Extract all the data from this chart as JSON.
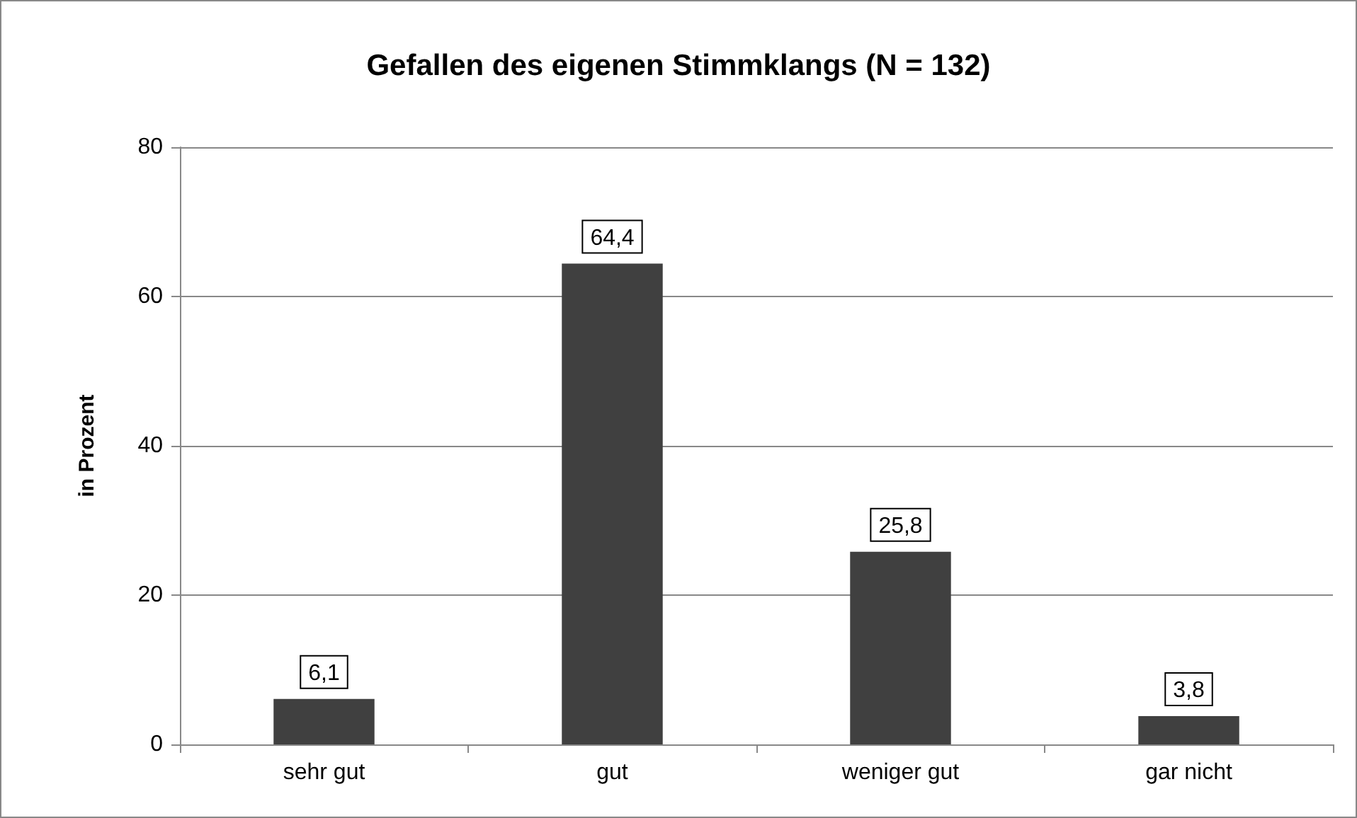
{
  "chart_data": {
    "type": "bar",
    "title": "Gefallen des eigenen Stimmklangs (N = 132)",
    "ylabel": "in Prozent",
    "categories": [
      "sehr gut",
      "gut",
      "weniger gut",
      "gar nicht"
    ],
    "values": [
      6.1,
      64.4,
      25.8,
      3.8
    ],
    "value_labels": [
      "6,1",
      "64,4",
      "25,8",
      "3,8"
    ],
    "color": "#404040",
    "ylim": [
      0,
      80
    ],
    "yticks": [
      0,
      20,
      40,
      60,
      80
    ],
    "grid": "y"
  }
}
